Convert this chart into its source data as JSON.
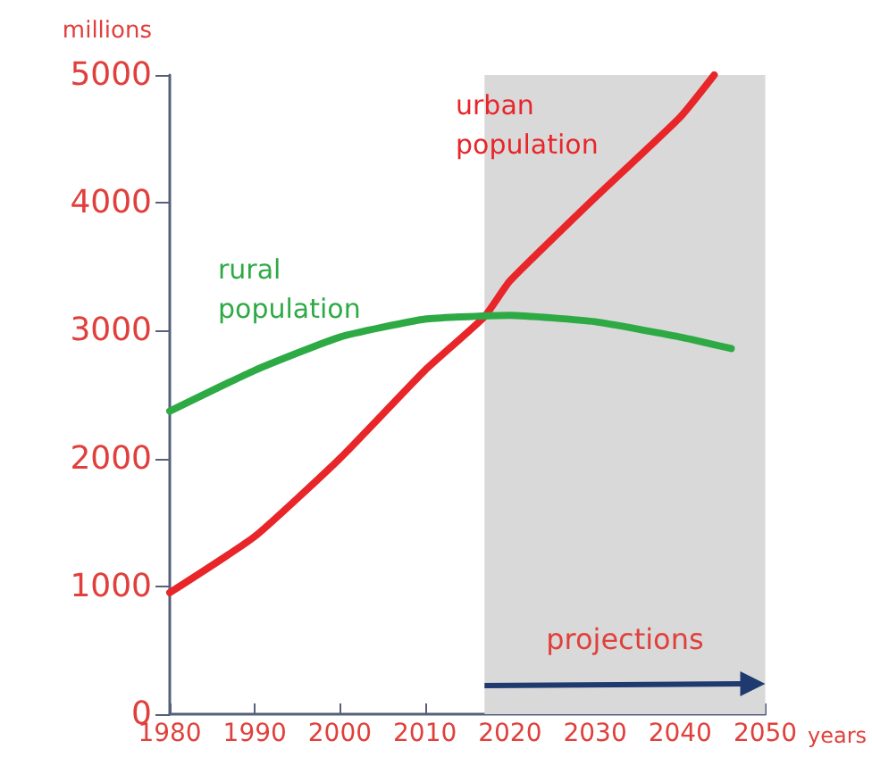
{
  "chart_data": {
    "type": "line",
    "xlabel": "years",
    "ylabel": "millions",
    "xlim": [
      1980,
      2050
    ],
    "xticks": [
      1980,
      1990,
      2000,
      2010,
      2020,
      2030,
      2040,
      2050
    ],
    "ylim": [
      0,
      5000
    ],
    "yticks": [
      0,
      1000,
      2000,
      3000,
      4000,
      5000
    ],
    "grid": false,
    "legend": false,
    "marker": "none",
    "line_style": "solid",
    "series": [
      {
        "name": "urban population",
        "color": "#e8262a",
        "x": [
          1980,
          1990,
          2000,
          2010,
          2017,
          2020,
          2030,
          2040,
          2044
        ],
        "values": [
          950,
          1390,
          2000,
          2690,
          3110,
          3390,
          4040,
          4670,
          5000
        ]
      },
      {
        "name": "rural population",
        "color": "#2eaa44",
        "x": [
          1980,
          1990,
          2000,
          2010,
          2020,
          2030,
          2040,
          2046
        ],
        "values": [
          2370,
          2690,
          2950,
          3090,
          3120,
          3070,
          2950,
          2860
        ]
      }
    ],
    "bands": [
      {
        "axis": "x",
        "from": 2017,
        "to": 2050,
        "label": "projections",
        "color": "#d9d9d9"
      }
    ]
  }
}
